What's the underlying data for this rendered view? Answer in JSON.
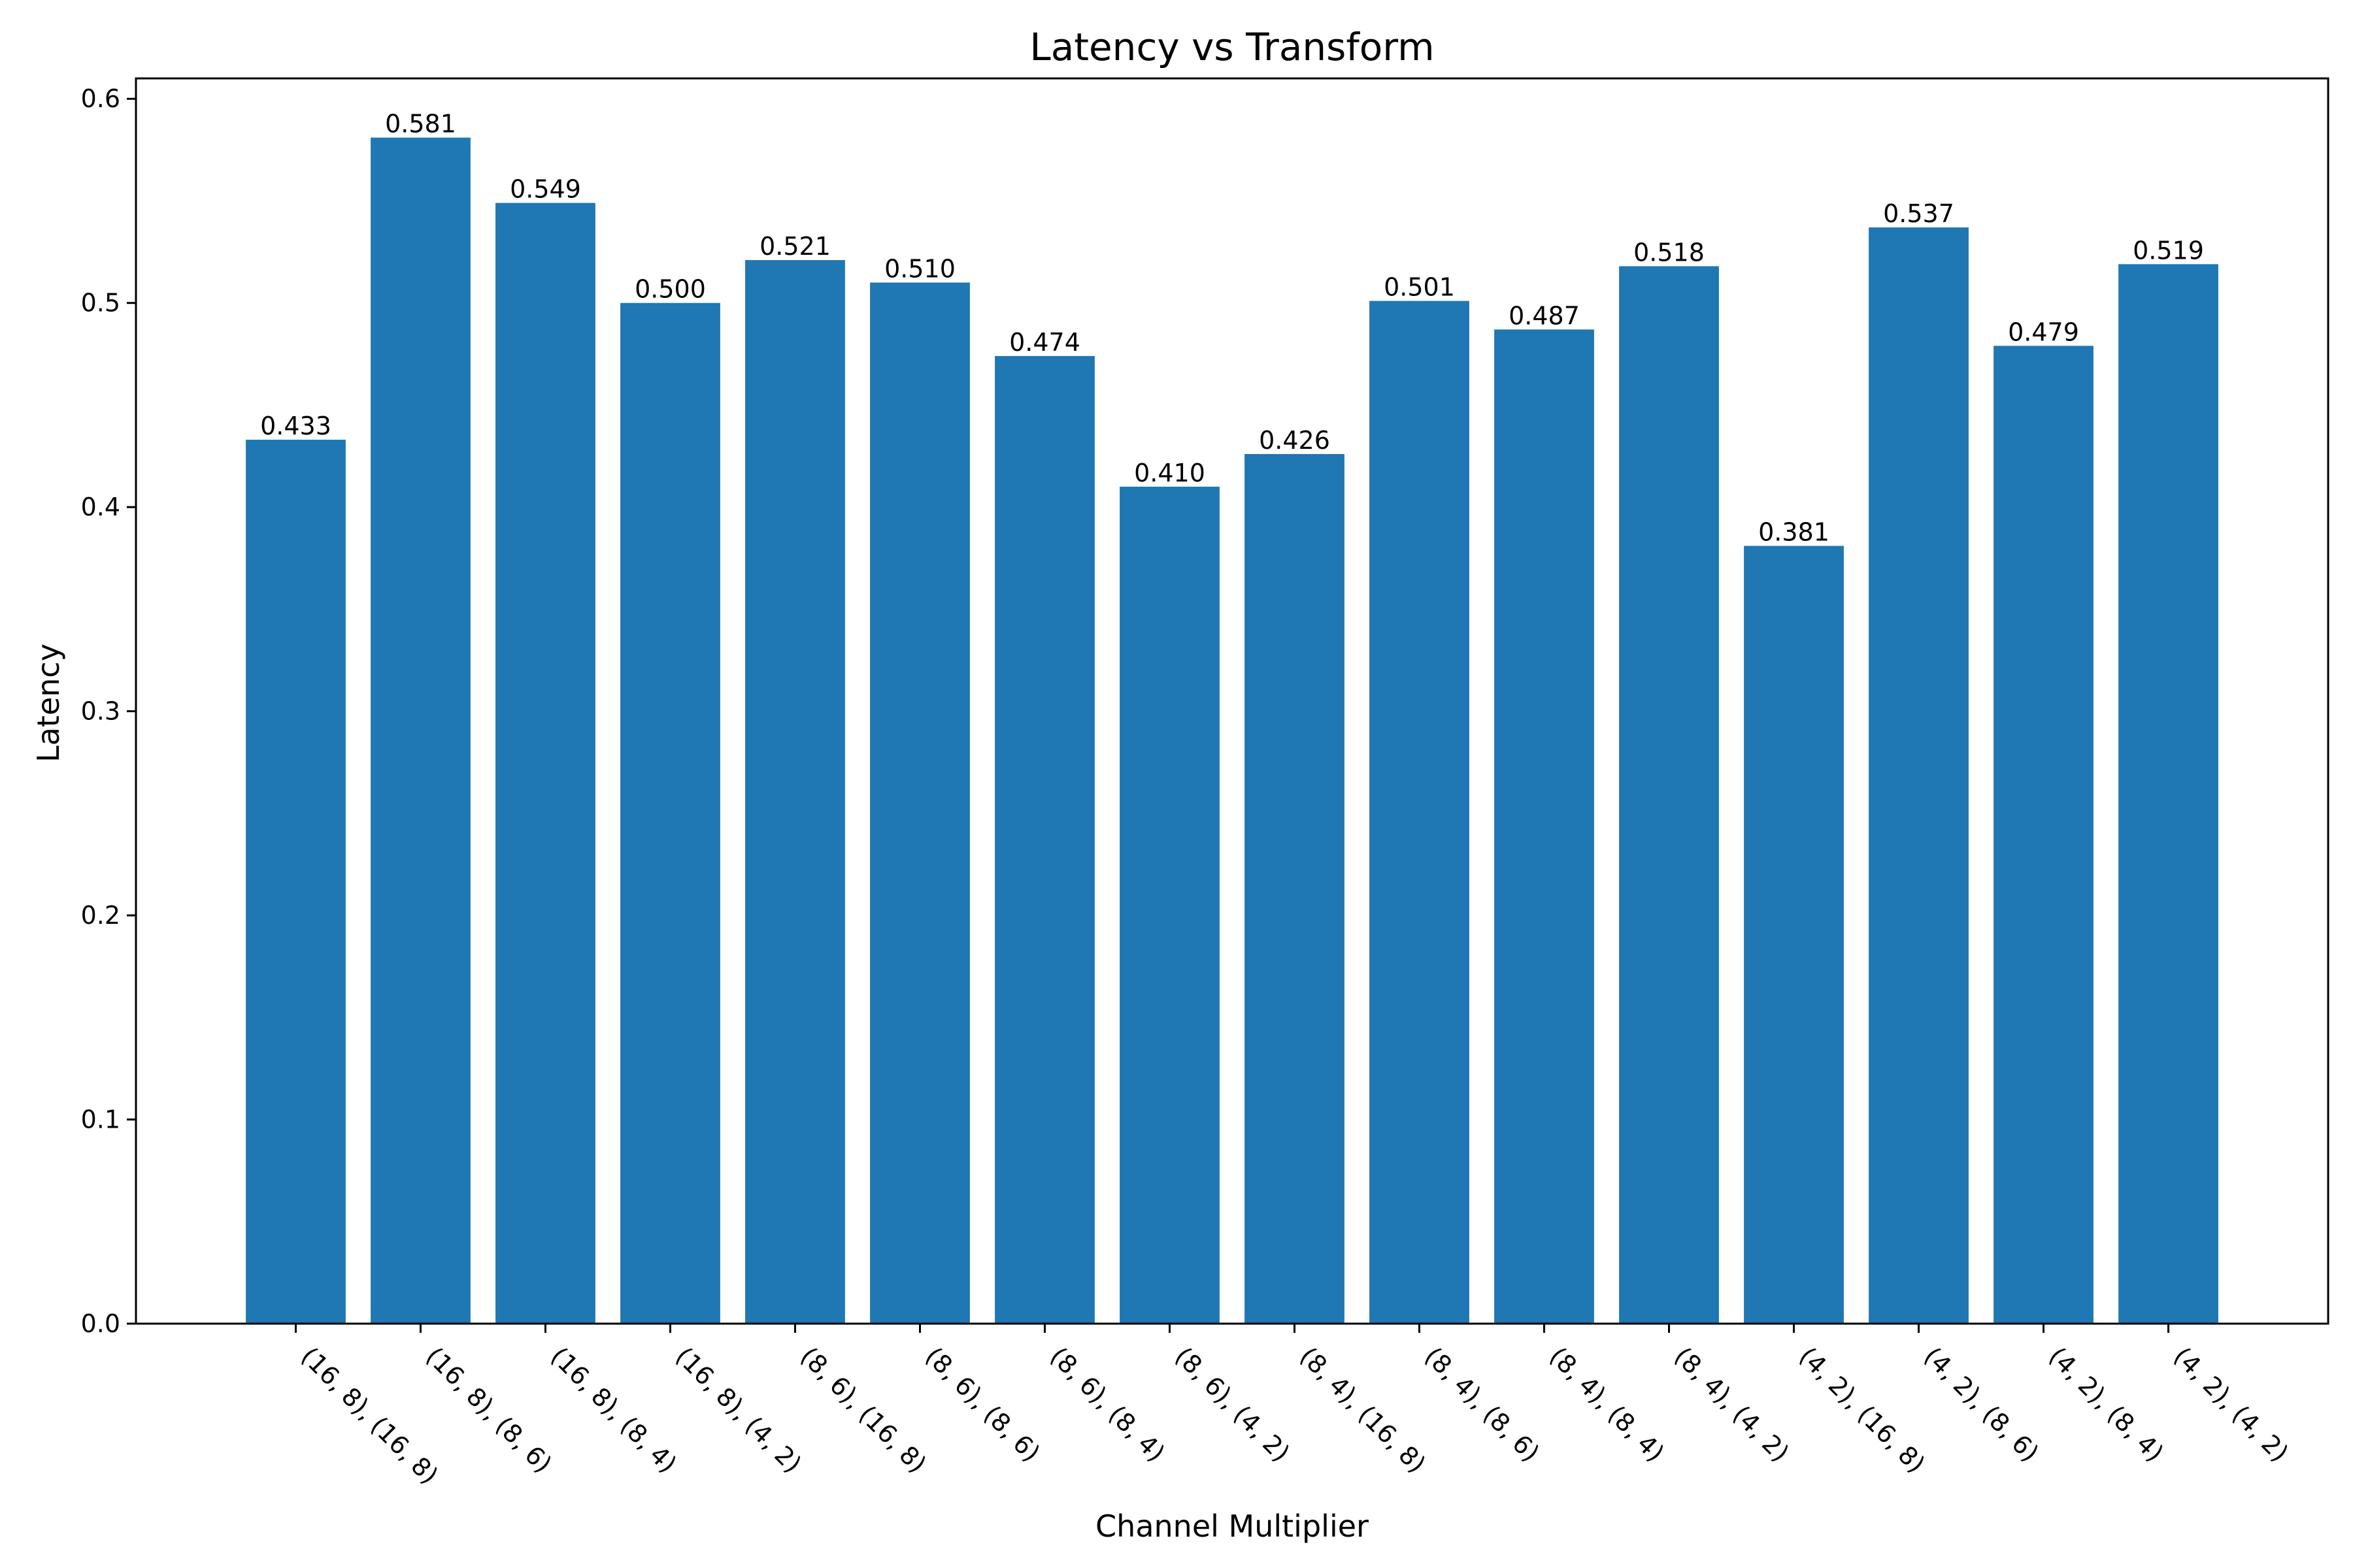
{
  "chart_data": {
    "type": "bar",
    "title": "Latency vs Transform",
    "xlabel": "Channel Multiplier",
    "ylabel": "Latency",
    "ylim": [
      0,
      0.61
    ],
    "yticks": [
      "0.0",
      "0.1",
      "0.2",
      "0.3",
      "0.4",
      "0.5",
      "0.6"
    ],
    "grid": false,
    "bar_color": "#1f77b4",
    "categories": [
      "(16, 8), (16, 8)",
      "(16, 8), (8, 6)",
      "(16, 8), (8, 4)",
      "(16, 8), (4, 2)",
      "(8, 6), (16, 8)",
      "(8, 6), (8, 6)",
      "(8, 6), (8, 4)",
      "(8, 6), (4, 2)",
      "(8, 4), (16, 8)",
      "(8, 4), (8, 6)",
      "(8, 4), (8, 4)",
      "(8, 4), (4, 2)",
      "(4, 2), (16, 8)",
      "(4, 2), (8, 6)",
      "(4, 2), (8, 4)",
      "(4, 2), (4, 2)"
    ],
    "values": [
      0.433,
      0.581,
      0.549,
      0.5,
      0.521,
      0.51,
      0.474,
      0.41,
      0.426,
      0.501,
      0.487,
      0.518,
      0.381,
      0.537,
      0.479,
      0.519
    ],
    "value_labels": [
      "0.433",
      "0.581",
      "0.549",
      "0.500",
      "0.521",
      "0.510",
      "0.474",
      "0.410",
      "0.426",
      "0.501",
      "0.487",
      "0.518",
      "0.381",
      "0.537",
      "0.479",
      "0.519"
    ]
  }
}
